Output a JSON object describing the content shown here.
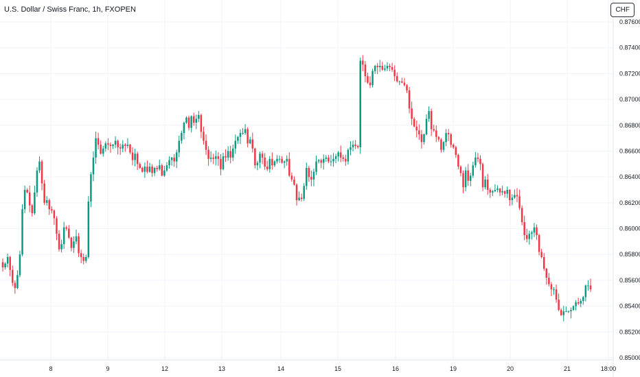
{
  "chart_data": {
    "type": "candlestick",
    "title": "U.S. Dollar / Swiss Franc, 1h, FXOPEN",
    "currency_label": "CHF",
    "ylim": [
      0.85,
      0.876
    ],
    "y_ticks": [
      "0.87600",
      "0.87400",
      "0.87200",
      "0.87000",
      "0.86800",
      "0.86600",
      "0.86400",
      "0.86200",
      "0.86000",
      "0.85800",
      "0.85600",
      "0.85400",
      "0.85200",
      "0.85000"
    ],
    "x_ticks": [
      "8",
      "9",
      "12",
      "13",
      "14",
      "15",
      "16",
      "19",
      "20",
      "21",
      "18:00"
    ],
    "grid": true,
    "colors": {
      "up": "#089981",
      "down": "#f23645",
      "grid": "#f0f3fa",
      "text": "#131722"
    },
    "series_close": [
      0.857,
      0.8573,
      0.8578,
      0.8568,
      0.8558,
      0.8554,
      0.8564,
      0.858,
      0.8615,
      0.863,
      0.8628,
      0.8618,
      0.8612,
      0.8628,
      0.8645,
      0.8652,
      0.8635,
      0.862,
      0.8622,
      0.8615,
      0.8614,
      0.8608,
      0.8596,
      0.8584,
      0.8588,
      0.8601,
      0.86,
      0.8593,
      0.8585,
      0.859,
      0.8594,
      0.8581,
      0.8578,
      0.8575,
      0.8578,
      0.8621,
      0.8642,
      0.8655,
      0.867,
      0.8665,
      0.8658,
      0.8662,
      0.8666,
      0.8665,
      0.8664,
      0.8665,
      0.8668,
      0.8663,
      0.8662,
      0.8665,
      0.8664,
      0.8665,
      0.8659,
      0.8653,
      0.8658,
      0.865,
      0.8647,
      0.8644,
      0.8648,
      0.8644,
      0.8648,
      0.8643,
      0.8647,
      0.8646,
      0.8649,
      0.8641,
      0.8645,
      0.8649,
      0.8653,
      0.8655,
      0.8652,
      0.8659,
      0.8668,
      0.8674,
      0.8682,
      0.8686,
      0.8678,
      0.8687,
      0.8682,
      0.8685,
      0.8688,
      0.8675,
      0.8668,
      0.8661,
      0.8654,
      0.8655,
      0.8654,
      0.8656,
      0.8654,
      0.8646,
      0.8656,
      0.8655,
      0.866,
      0.8655,
      0.8662,
      0.8668,
      0.8671,
      0.8674,
      0.8674,
      0.8677,
      0.8666,
      0.8669,
      0.8662,
      0.8649,
      0.8651,
      0.8658,
      0.8655,
      0.8648,
      0.8646,
      0.8654,
      0.8649,
      0.8652,
      0.8654,
      0.8654,
      0.8651,
      0.8652,
      0.8654,
      0.8641,
      0.8638,
      0.8634,
      0.8622,
      0.8624,
      0.8623,
      0.8633,
      0.8647,
      0.864,
      0.8638,
      0.8644,
      0.8652,
      0.8653,
      0.8651,
      0.8654,
      0.8655,
      0.8652,
      0.8652,
      0.8654,
      0.8656,
      0.8659,
      0.8655,
      0.8654,
      0.8652,
      0.8661,
      0.8663,
      0.8665,
      0.8664,
      0.8663,
      0.873,
      0.8727,
      0.8718,
      0.8713,
      0.8711,
      0.8722,
      0.8726,
      0.8725,
      0.8726,
      0.8723,
      0.8724,
      0.8726,
      0.8725,
      0.8723,
      0.8718,
      0.8714,
      0.8714,
      0.8713,
      0.8711,
      0.8707,
      0.8693,
      0.8685,
      0.8679,
      0.8676,
      0.8673,
      0.8667,
      0.8673,
      0.8685,
      0.8691,
      0.8677,
      0.8676,
      0.8671,
      0.8669,
      0.8661,
      0.8667,
      0.8674,
      0.8673,
      0.8665,
      0.8663,
      0.8657,
      0.8648,
      0.8643,
      0.8632,
      0.8645,
      0.8637,
      0.8641,
      0.8649,
      0.8655,
      0.8654,
      0.865,
      0.8632,
      0.8638,
      0.863,
      0.8628,
      0.8629,
      0.863,
      0.8631,
      0.8628,
      0.8629,
      0.8627,
      0.863,
      0.8622,
      0.8624,
      0.8626,
      0.8625,
      0.8616,
      0.8605,
      0.8595,
      0.8592,
      0.8596,
      0.8597,
      0.8601,
      0.8595,
      0.8582,
      0.8578,
      0.8569,
      0.8562,
      0.8557,
      0.8553,
      0.8553,
      0.8545,
      0.8537,
      0.8533,
      0.8536,
      0.8536,
      0.8536,
      0.8537,
      0.854,
      0.8543,
      0.8542,
      0.8544,
      0.8547,
      0.8556,
      0.8556,
      0.8553
    ]
  }
}
